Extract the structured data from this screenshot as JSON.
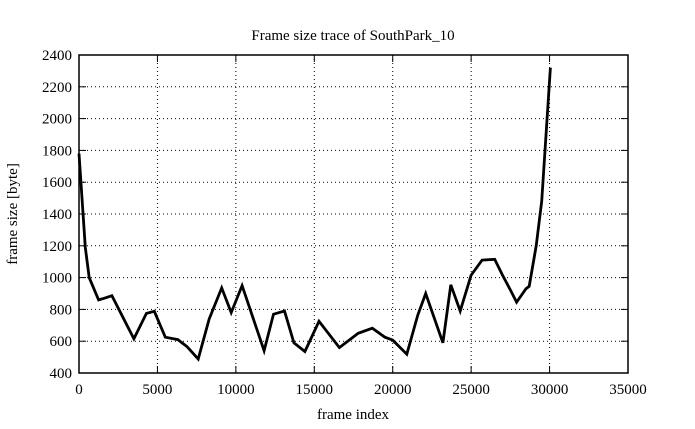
{
  "chart_data": {
    "type": "line",
    "title": "Frame size trace of SouthPark_10",
    "xlabel": "frame index",
    "ylabel": "frame size [byte]",
    "xlim": [
      0,
      35000
    ],
    "ylim": [
      400,
      2400
    ],
    "xticks": [
      0,
      5000,
      10000,
      15000,
      20000,
      25000,
      30000,
      35000
    ],
    "yticks": [
      400,
      600,
      800,
      1000,
      1200,
      1400,
      1600,
      1800,
      2000,
      2200,
      2400
    ],
    "grid": "dotted",
    "grid_on": true,
    "legend": "none",
    "line_color": "#000000",
    "border_color": "#000000",
    "background_color": "#ffffff",
    "series": [
      {
        "name": "frame size",
        "points": [
          [
            0,
            1780
          ],
          [
            200,
            1490
          ],
          [
            400,
            1190
          ],
          [
            650,
            1000
          ],
          [
            1250,
            860
          ],
          [
            1600,
            870
          ],
          [
            2100,
            886
          ],
          [
            3500,
            615
          ],
          [
            4300,
            775
          ],
          [
            4800,
            788
          ],
          [
            5500,
            625
          ],
          [
            6300,
            610
          ],
          [
            6900,
            565
          ],
          [
            7600,
            488
          ],
          [
            8300,
            740
          ],
          [
            9100,
            935
          ],
          [
            9700,
            780
          ],
          [
            10400,
            950
          ],
          [
            11800,
            540
          ],
          [
            12400,
            770
          ],
          [
            13100,
            790
          ],
          [
            13700,
            590
          ],
          [
            14400,
            535
          ],
          [
            15300,
            725
          ],
          [
            16600,
            560
          ],
          [
            17800,
            650
          ],
          [
            18700,
            682
          ],
          [
            19500,
            625
          ],
          [
            20000,
            607
          ],
          [
            20900,
            518
          ],
          [
            21600,
            765
          ],
          [
            22100,
            900
          ],
          [
            23200,
            590
          ],
          [
            23700,
            955
          ],
          [
            24300,
            790
          ],
          [
            25000,
            1015
          ],
          [
            25700,
            1110
          ],
          [
            26500,
            1115
          ],
          [
            27000,
            1016
          ],
          [
            27500,
            922
          ],
          [
            27900,
            845
          ],
          [
            28500,
            930
          ],
          [
            28700,
            945
          ],
          [
            29150,
            1200
          ],
          [
            29500,
            1480
          ],
          [
            30050,
            2320
          ]
        ]
      }
    ]
  }
}
